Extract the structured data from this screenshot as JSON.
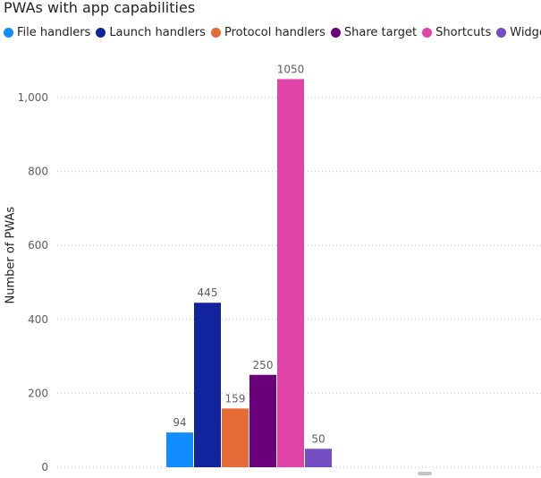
{
  "chart_data": {
    "type": "bar",
    "title": "PWAs with app capabilities",
    "ylabel": "Number of PWAs",
    "xlabel": "",
    "ylim": [
      0,
      1100
    ],
    "y_ticks": [
      "0",
      "200",
      "400",
      "600",
      "800",
      "1,000"
    ],
    "y_tick_values": [
      0,
      200,
      400,
      600,
      800,
      1000
    ],
    "grid": true,
    "legend_position": "top-left",
    "series": [
      {
        "name": "File handlers",
        "value": 94,
        "label": "94",
        "color": "#118dff"
      },
      {
        "name": "Launch handlers",
        "value": 445,
        "label": "445",
        "color": "#12239e"
      },
      {
        "name": "Protocol handlers",
        "value": 159,
        "label": "159",
        "color": "#e66c37"
      },
      {
        "name": "Share target",
        "value": 250,
        "label": "250",
        "color": "#6b007b"
      },
      {
        "name": "Shortcuts",
        "value": 1050,
        "label": "1050",
        "color": "#e044a7"
      },
      {
        "name": "Widgets",
        "value": 50,
        "label": "50",
        "color": "#744ec2"
      }
    ]
  }
}
